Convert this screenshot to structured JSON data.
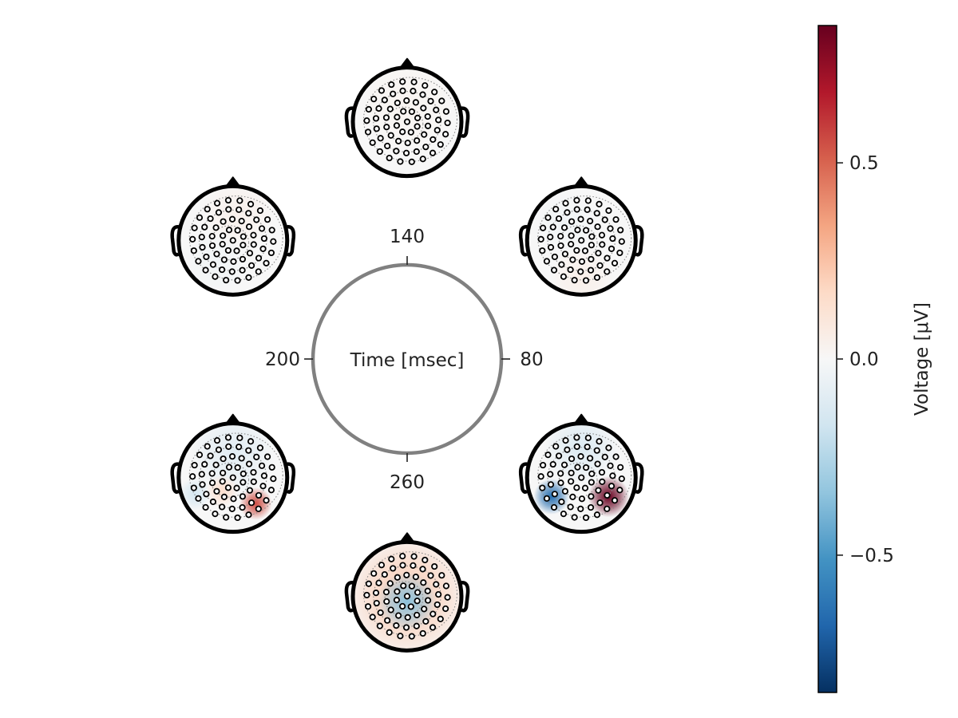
{
  "chart_data": {
    "type": "circular-topoplot",
    "center_label": "Time [msec]",
    "ring_ticks": [
      {
        "label": "140",
        "angle_deg": 90
      },
      {
        "label": "80",
        "angle_deg": 0
      },
      {
        "label": "260",
        "angle_deg": 270
      },
      {
        "label": "200",
        "angle_deg": 180
      }
    ],
    "topoplots": [
      {
        "angle_deg": 90,
        "blobs": [
          {
            "u": 0.0,
            "v": 0.3,
            "r": 1.0,
            "value": 0.02
          }
        ]
      },
      {
        "angle_deg": 30,
        "blobs": [
          {
            "u": 0.0,
            "v": -0.7,
            "r": 0.6,
            "value": 0.05
          },
          {
            "u": -0.3,
            "v": 0.3,
            "r": 0.6,
            "value": -0.03
          }
        ]
      },
      {
        "angle_deg": 150,
        "blobs": [
          {
            "u": 0.1,
            "v": 0.5,
            "r": 0.7,
            "value": 0.04
          },
          {
            "u": -0.3,
            "v": -0.4,
            "r": 0.6,
            "value": -0.03
          }
        ]
      },
      {
        "angle_deg": 210,
        "blobs": [
          {
            "u": 0.0,
            "v": 0.45,
            "r": 0.8,
            "value": -0.1
          },
          {
            "u": 0.42,
            "v": -0.48,
            "r": 0.3,
            "value": 0.55
          },
          {
            "u": -0.7,
            "v": -0.3,
            "r": 0.3,
            "value": -0.15
          },
          {
            "u": -0.2,
            "v": -0.25,
            "r": 0.3,
            "value": 0.15
          }
        ]
      },
      {
        "angle_deg": 270,
        "blobs": [
          {
            "u": 0.0,
            "v": 0.0,
            "r": 1.2,
            "value": 0.22
          },
          {
            "u": 0.0,
            "v": -0.1,
            "r": 0.55,
            "value": -0.35
          }
        ]
      },
      {
        "angle_deg": 330,
        "blobs": [
          {
            "u": 0.5,
            "v": -0.35,
            "r": 0.38,
            "value": 0.85
          },
          {
            "u": -0.55,
            "v": -0.35,
            "r": 0.33,
            "value": -0.65
          },
          {
            "u": 0.0,
            "v": 0.55,
            "r": 0.7,
            "value": -0.12
          }
        ]
      }
    ],
    "colorbar": {
      "label": "Voltage [μV]",
      "range": [
        -0.85,
        0.85
      ],
      "ticks": [
        {
          "value": 0.5,
          "label": "0.5"
        },
        {
          "value": 0.0,
          "label": "0.0"
        },
        {
          "value": -0.5,
          "label": "−0.5"
        }
      ],
      "colormap": "RdBu_r"
    }
  },
  "colors": {
    "ring": "#808080",
    "head_outline": "#000000",
    "electrode": "#000000",
    "contour": "#888888"
  }
}
